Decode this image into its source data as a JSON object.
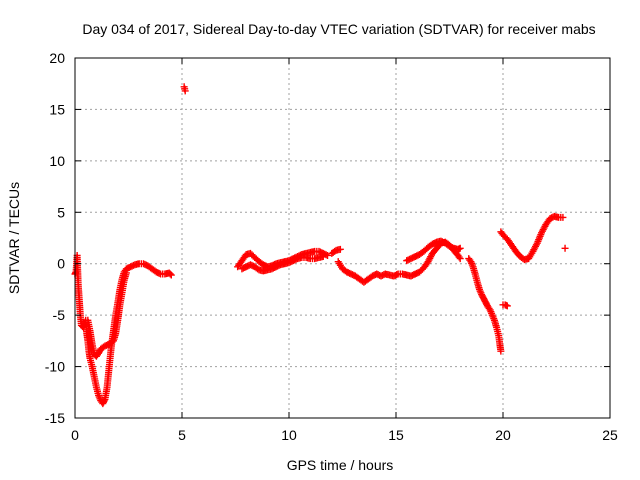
{
  "chart_data": {
    "type": "scatter",
    "title": "Day 034 of 2017, Sidereal Day-to-day VTEC variation (SDTVAR) for receiver mabs",
    "xlabel": "GPS time / hours",
    "ylabel": "SDTVAR / TECUs",
    "xlim": [
      0,
      25
    ],
    "ylim": [
      -15,
      20
    ],
    "xticks": [
      0,
      5,
      10,
      15,
      20,
      25
    ],
    "yticks": [
      -15,
      -10,
      -5,
      0,
      5,
      10,
      15,
      20
    ],
    "xtick_labels": [
      "0",
      "5",
      "10",
      "15",
      "20",
      "25"
    ],
    "ytick_labels": [
      "-15",
      "-10",
      "-5",
      "0",
      "5",
      "10",
      "15",
      "20"
    ],
    "grid": true,
    "marker": "+",
    "marker_color": "#ff0000",
    "series": [
      {
        "name": "SDTVAR",
        "segments": [
          [
            [
              0.0,
              -1.0
            ],
            [
              0.05,
              -0.8
            ],
            [
              0.1,
              0.8
            ],
            [
              0.15,
              -2.0
            ],
            [
              0.2,
              -3.5
            ],
            [
              0.25,
              -5.0
            ],
            [
              0.3,
              -6.0
            ],
            [
              0.4,
              -6.2
            ],
            [
              0.5,
              -5.5
            ],
            [
              0.55,
              -6.8
            ],
            [
              0.6,
              -7.5
            ],
            [
              0.65,
              -8.5
            ],
            [
              0.7,
              -9.2
            ],
            [
              0.8,
              -10.0
            ],
            [
              0.9,
              -11.0
            ],
            [
              1.0,
              -12.0
            ],
            [
              1.1,
              -12.8
            ],
            [
              1.2,
              -13.3
            ],
            [
              1.3,
              -13.6
            ],
            [
              1.4,
              -13.2
            ],
            [
              1.5,
              -12.0
            ],
            [
              1.6,
              -10.0
            ],
            [
              1.7,
              -8.0
            ],
            [
              1.8,
              -6.5
            ],
            [
              1.9,
              -5.0
            ],
            [
              2.0,
              -3.8
            ],
            [
              2.1,
              -2.5
            ],
            [
              2.2,
              -1.5
            ],
            [
              2.3,
              -0.8
            ],
            [
              2.4,
              -0.5
            ],
            [
              2.6,
              -0.3
            ],
            [
              2.8,
              -0.1
            ],
            [
              3.0,
              0.0
            ],
            [
              3.2,
              0.0
            ],
            [
              3.4,
              -0.2
            ],
            [
              3.6,
              -0.5
            ],
            [
              3.8,
              -0.8
            ],
            [
              4.0,
              -1.0
            ],
            [
              4.2,
              -1.0
            ],
            [
              4.4,
              -0.9
            ],
            [
              4.5,
              -1.1
            ]
          ],
          [
            [
              0.6,
              -5.5
            ],
            [
              0.7,
              -6.5
            ],
            [
              0.8,
              -7.8
            ],
            [
              0.9,
              -8.8
            ],
            [
              1.0,
              -9.0
            ],
            [
              1.1,
              -8.7
            ],
            [
              1.2,
              -8.3
            ],
            [
              1.4,
              -8.0
            ],
            [
              1.6,
              -7.8
            ],
            [
              1.8,
              -7.5
            ],
            [
              1.9,
              -6.8
            ],
            [
              2.0,
              -5.5
            ],
            [
              2.1,
              -4.0
            ],
            [
              2.2,
              -2.8
            ],
            [
              2.3,
              -1.6
            ],
            [
              2.4,
              -0.9
            ]
          ],
          [
            [
              5.1,
              17.2
            ],
            [
              5.15,
              16.8
            ]
          ],
          [
            [
              7.6,
              -0.3
            ],
            [
              7.8,
              0.3
            ],
            [
              8.0,
              0.9
            ],
            [
              8.2,
              1.0
            ],
            [
              8.4,
              0.6
            ],
            [
              8.6,
              0.2
            ],
            [
              8.8,
              -0.1
            ],
            [
              9.0,
              -0.3
            ],
            [
              9.2,
              -0.2
            ],
            [
              9.4,
              0.0
            ],
            [
              9.6,
              0.1
            ],
            [
              9.8,
              0.2
            ],
            [
              10.0,
              0.3
            ],
            [
              10.2,
              0.5
            ],
            [
              10.4,
              0.7
            ],
            [
              10.6,
              0.9
            ],
            [
              10.8,
              1.0
            ],
            [
              11.0,
              1.1
            ],
            [
              11.2,
              1.2
            ],
            [
              11.4,
              1.2
            ],
            [
              11.6,
              1.0
            ],
            [
              11.8,
              0.8
            ]
          ],
          [
            [
              7.8,
              -0.5
            ],
            [
              8.0,
              -0.3
            ],
            [
              8.2,
              -0.1
            ],
            [
              8.4,
              -0.3
            ],
            [
              8.6,
              -0.6
            ],
            [
              8.8,
              -0.7
            ],
            [
              9.0,
              -0.6
            ],
            [
              9.2,
              -0.5
            ],
            [
              9.4,
              -0.3
            ],
            [
              9.6,
              -0.1
            ],
            [
              9.8,
              0.0
            ],
            [
              10.0,
              0.1
            ],
            [
              10.2,
              0.3
            ],
            [
              10.4,
              0.5
            ],
            [
              10.6,
              0.6
            ],
            [
              10.8,
              0.6
            ],
            [
              11.0,
              0.5
            ],
            [
              11.2,
              0.5
            ],
            [
              11.4,
              0.6
            ],
            [
              11.6,
              0.7
            ]
          ],
          [
            [
              12.0,
              1.0
            ],
            [
              12.2,
              1.3
            ],
            [
              12.4,
              1.4
            ]
          ],
          [
            [
              12.3,
              0.2
            ],
            [
              12.5,
              -0.5
            ],
            [
              12.7,
              -0.8
            ],
            [
              12.9,
              -1.0
            ],
            [
              13.1,
              -1.2
            ],
            [
              13.3,
              -1.5
            ],
            [
              13.5,
              -1.8
            ],
            [
              13.7,
              -1.5
            ],
            [
              13.9,
              -1.2
            ],
            [
              14.1,
              -1.0
            ],
            [
              14.3,
              -1.2
            ],
            [
              14.5,
              -1.0
            ],
            [
              14.7,
              -1.1
            ],
            [
              14.9,
              -1.2
            ],
            [
              15.1,
              -1.0
            ],
            [
              15.3,
              -1.0
            ],
            [
              15.5,
              -1.1
            ],
            [
              15.7,
              -1.2
            ],
            [
              15.9,
              -1.0
            ],
            [
              16.1,
              -0.8
            ],
            [
              16.3,
              -0.4
            ],
            [
              16.5,
              0.2
            ],
            [
              16.7,
              1.0
            ],
            [
              16.9,
              1.5
            ],
            [
              17.1,
              2.0
            ],
            [
              17.3,
              2.1
            ],
            [
              17.5,
              1.8
            ],
            [
              17.7,
              1.3
            ],
            [
              17.9,
              0.8
            ],
            [
              18.0,
              0.5
            ]
          ],
          [
            [
              15.5,
              0.3
            ],
            [
              15.7,
              0.5
            ],
            [
              15.9,
              0.7
            ],
            [
              16.1,
              0.9
            ],
            [
              16.3,
              1.2
            ],
            [
              16.5,
              1.6
            ],
            [
              16.7,
              1.9
            ],
            [
              16.9,
              2.1
            ],
            [
              17.1,
              2.2
            ],
            [
              17.3,
              2.0
            ],
            [
              17.5,
              1.7
            ],
            [
              17.7,
              1.5
            ],
            [
              17.9,
              1.4
            ],
            [
              18.0,
              1.5
            ]
          ],
          [
            [
              18.4,
              0.5
            ],
            [
              18.5,
              0.2
            ],
            [
              18.6,
              -0.3
            ],
            [
              18.7,
              -1.0
            ],
            [
              18.8,
              -1.8
            ],
            [
              18.9,
              -2.5
            ],
            [
              19.0,
              -3.0
            ],
            [
              19.1,
              -3.4
            ],
            [
              19.2,
              -3.8
            ],
            [
              19.3,
              -4.2
            ],
            [
              19.4,
              -4.5
            ],
            [
              19.5,
              -5.0
            ],
            [
              19.6,
              -5.5
            ],
            [
              19.7,
              -6.2
            ],
            [
              19.8,
              -7.0
            ],
            [
              19.85,
              -7.8
            ],
            [
              19.9,
              -8.5
            ]
          ],
          [
            [
              20.0,
              -4.0
            ],
            [
              20.1,
              -4.0
            ],
            [
              20.2,
              -4.1
            ]
          ],
          [
            [
              19.9,
              3.1
            ],
            [
              20.0,
              2.8
            ],
            [
              20.2,
              2.4
            ],
            [
              20.4,
              1.8
            ],
            [
              20.6,
              1.2
            ],
            [
              20.8,
              0.7
            ],
            [
              21.0,
              0.4
            ],
            [
              21.2,
              0.5
            ],
            [
              21.4,
              1.2
            ],
            [
              21.6,
              2.0
            ],
            [
              21.8,
              3.0
            ],
            [
              22.0,
              3.8
            ],
            [
              22.2,
              4.4
            ],
            [
              22.4,
              4.6
            ],
            [
              22.6,
              4.5
            ],
            [
              22.8,
              4.5
            ]
          ],
          [
            [
              22.9,
              1.5
            ]
          ]
        ]
      }
    ]
  }
}
